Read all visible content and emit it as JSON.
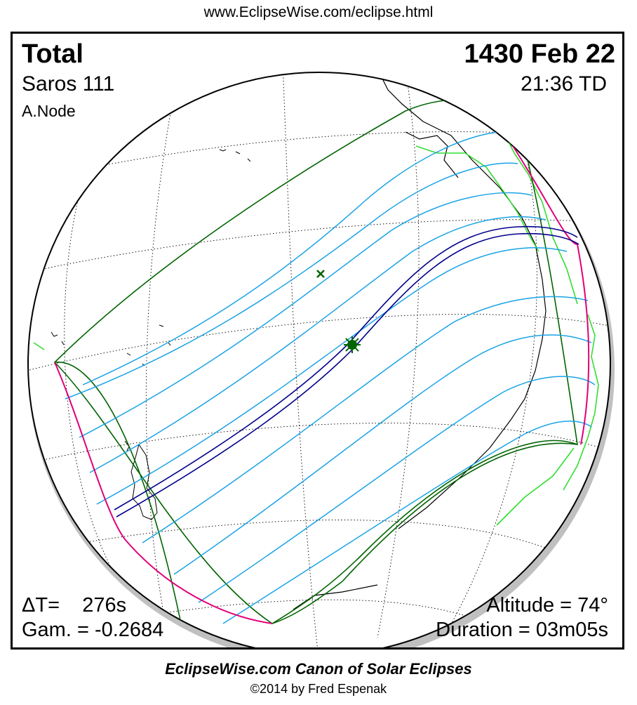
{
  "header": {
    "url": "www.EclipseWise.com/eclipse.html"
  },
  "panel": {
    "eclipse_type": "Total",
    "date": "1430 Feb 22",
    "saros": "Saros 111",
    "time": "21:36 TD",
    "node": "A.Node",
    "delta_t": "ΔT=    276s",
    "gamma": "Gam. = -0.2684",
    "altitude": "Altitude = 74°",
    "duration": "Duration = 03m05s"
  },
  "footer": {
    "canon": "EclipseWise.com Canon of Solar Eclipses",
    "copyright": "©2014 by Fred Espenak"
  },
  "colors": {
    "penumbra_limit": "#006400",
    "partial_lines": "#1aa3e6",
    "central_path": "#00008b",
    "rise_set_curve": "#e0007a",
    "coastline": "#000000",
    "land_boundary": "#33dd33",
    "greatest_eclipse_marker": "#006400"
  },
  "icons": {
    "greatest_eclipse": "sun-star-icon",
    "sub_solar_point": "x-mark-icon"
  }
}
